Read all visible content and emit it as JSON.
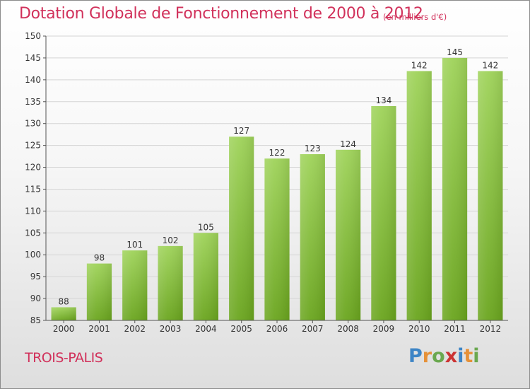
{
  "title": "Dotation Globale de Fonctionnement de 2000 à 2012",
  "unit_label": "(en milliers d'€)",
  "commune": "TROIS-PALIS",
  "logo": {
    "letters": [
      "P",
      "r",
      "o",
      "x",
      "i",
      "t",
      "i"
    ],
    "colors": [
      "#3d85c6",
      "#e69138",
      "#6aa84f",
      "#cc3333",
      "#3d85c6",
      "#e69138",
      "#6aa84f"
    ]
  },
  "colors": {
    "title": "#d1315b",
    "bar_top": "#9fd35a",
    "bar_bottom": "#6aa51e",
    "grid": "#d5d5d5",
    "axis": "#555555"
  },
  "chart_data": {
    "type": "bar",
    "categories": [
      "2000",
      "2001",
      "2002",
      "2003",
      "2004",
      "2005",
      "2006",
      "2007",
      "2008",
      "2009",
      "2010",
      "2011",
      "2012"
    ],
    "values": [
      88,
      98,
      101,
      102,
      105,
      127,
      122,
      123,
      124,
      134,
      142,
      145,
      142
    ],
    "ylim": [
      85,
      150
    ],
    "yticks": [
      85,
      90,
      95,
      100,
      105,
      110,
      115,
      120,
      125,
      130,
      135,
      140,
      145,
      150
    ],
    "grid": true,
    "legend": "none"
  }
}
